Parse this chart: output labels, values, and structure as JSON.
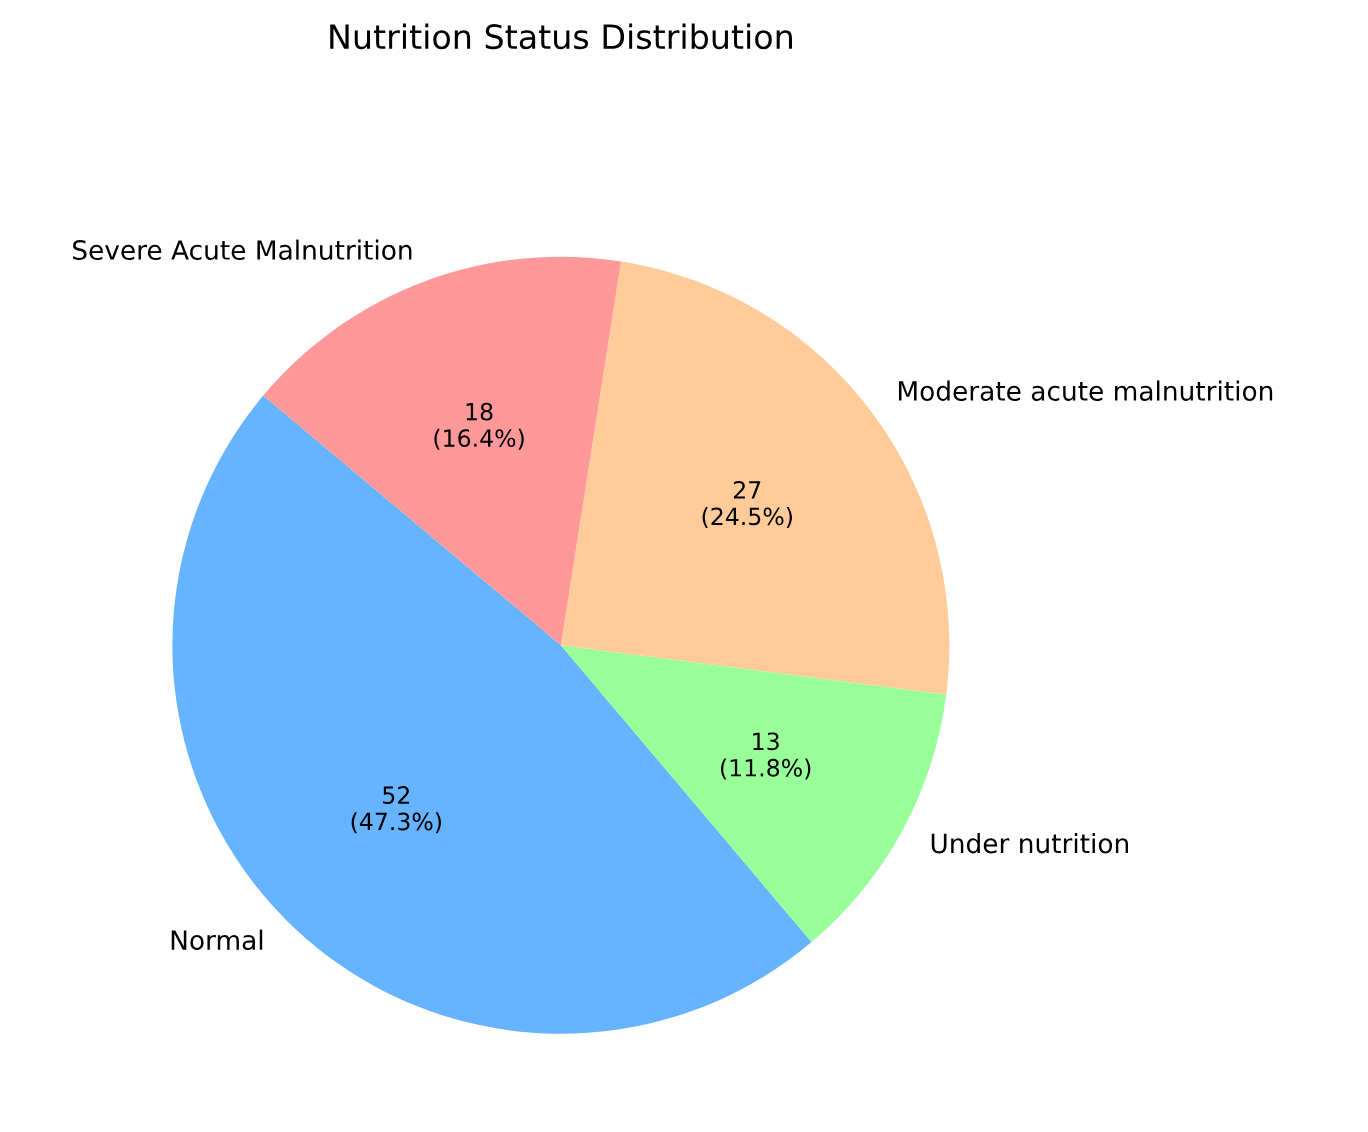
{
  "chart_data": {
    "type": "pie",
    "title": "Nutrition Status Distribution",
    "categories": [
      "Normal",
      "Under nutrition",
      "Moderate acute malnutrition",
      "Severe Acute Malnutrition"
    ],
    "values": [
      52,
      13,
      27,
      18
    ],
    "value_labels": [
      "52\n(47.3%)",
      "13\n(11.8%)",
      "27\n(24.5%)",
      "18\n(16.4%)"
    ],
    "colors": [
      "#66b3ff",
      "#99ff99",
      "#ffcc99",
      "#ff9999"
    ]
  }
}
